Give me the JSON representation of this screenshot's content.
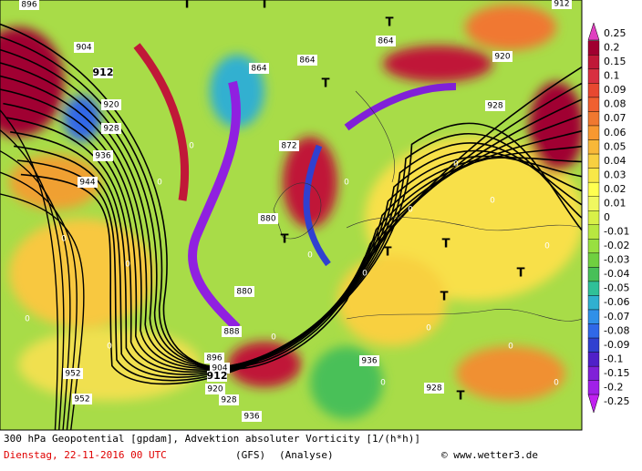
{
  "colorbar": {
    "labels": [
      "0.25",
      "0.2",
      "0.15",
      "0.1",
      "0.09",
      "0.08",
      "0.07",
      "0.06",
      "0.05",
      "0.04",
      "0.03",
      "0.02",
      "0.01",
      "0",
      "-0.01",
      "-0.02",
      "-0.03",
      "-0.04",
      "-0.05",
      "-0.06",
      "-0.07",
      "-0.08",
      "-0.09",
      "-0.1",
      "-0.15",
      "-0.2",
      "-0.25"
    ],
    "colors": [
      "#e040c0",
      "#a00030",
      "#c01838",
      "#d83040",
      "#e84830",
      "#f06030",
      "#f07830",
      "#f89830",
      "#f8b838",
      "#f8d040",
      "#f8e848",
      "#ffff50",
      "#f0f860",
      "#d8f048",
      "#b8e840",
      "#98e040",
      "#70d040",
      "#48c058",
      "#30c098",
      "#30b0d0",
      "#3090e8",
      "#3068e8",
      "#3040d0",
      "#5020c8",
      "#8020d8",
      "#a020e8",
      "#c020f0"
    ]
  },
  "map": {
    "contour_labels": [
      "896",
      "904",
      "912",
      "920",
      "928",
      "936",
      "944",
      "952",
      "952",
      "864",
      "864",
      "864",
      "872",
      "880",
      "880",
      "888",
      "896",
      "904",
      "912",
      "920",
      "928",
      "936",
      "936",
      "928",
      "920",
      "928",
      "912"
    ],
    "pressure_centers": [
      "T",
      "T",
      "T",
      "T",
      "T",
      "T",
      "T",
      "T",
      "T",
      "T"
    ],
    "zero_labels": [
      "0",
      "0",
      "0",
      "0",
      "0",
      "0",
      "0",
      "0",
      "0",
      "0",
      "0",
      "0",
      "0",
      "0",
      "0",
      "0",
      "0",
      "0"
    ]
  },
  "footer": {
    "title": "300 hPa Geopotential [gpdam], Advektion absoluter Vorticity [1/(h*h)]",
    "date": "Dienstag, 22-11-2016  00 UTC",
    "model": "(GFS)",
    "run": "(Analyse)",
    "credit": "© www.wetter3.de"
  }
}
